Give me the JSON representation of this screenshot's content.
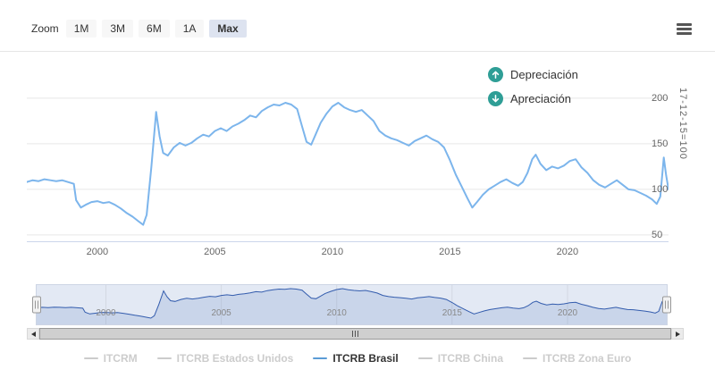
{
  "toolbar": {
    "zoom_label": "Zoom",
    "buttons": [
      "1M",
      "3M",
      "6M",
      "1A",
      "Max"
    ],
    "active_button": "Max"
  },
  "annotations": [
    {
      "id": "depreciation",
      "label": "Depreciación",
      "icon": "arrow-up-circle-icon",
      "color": "#2f9e96"
    },
    {
      "id": "appreciation",
      "label": "Apreciación",
      "icon": "arrow-down-circle-icon",
      "color": "#2f9e96"
    }
  ],
  "chart_data": {
    "type": "line",
    "title": "",
    "xlabel": "",
    "ylabel": "17-12-15=100",
    "grid": true,
    "legend_position": "bottom",
    "x_ticks": [
      2000,
      2005,
      2010,
      2015,
      2020
    ],
    "y_ticks": [
      50,
      100,
      150,
      200
    ],
    "xlim": [
      1997.0,
      2024.3
    ],
    "ylim": [
      43,
      244
    ],
    "series": [
      {
        "name": "ITCRB Brasil",
        "color": "#7cb5ec",
        "x": [
          1997.0,
          1997.25,
          1997.5,
          1997.75,
          1998.0,
          1998.25,
          1998.5,
          1998.75,
          1999.0,
          1999.1,
          1999.3,
          1999.5,
          1999.75,
          2000.0,
          2000.25,
          2000.5,
          2000.75,
          2001.0,
          2001.25,
          2001.5,
          2001.75,
          2001.95,
          2002.1,
          2002.3,
          2002.5,
          2002.65,
          2002.8,
          2003.0,
          2003.25,
          2003.5,
          2003.75,
          2004.0,
          2004.25,
          2004.5,
          2004.75,
          2005.0,
          2005.25,
          2005.5,
          2005.75,
          2006.0,
          2006.25,
          2006.5,
          2006.75,
          2007.0,
          2007.25,
          2007.5,
          2007.75,
          2008.0,
          2008.25,
          2008.5,
          2008.7,
          2008.9,
          2009.1,
          2009.3,
          2009.5,
          2009.75,
          2010.0,
          2010.25,
          2010.5,
          2010.75,
          2011.0,
          2011.25,
          2011.5,
          2011.75,
          2012.0,
          2012.25,
          2012.5,
          2012.75,
          2013.0,
          2013.25,
          2013.5,
          2013.75,
          2014.0,
          2014.25,
          2014.5,
          2014.75,
          2015.0,
          2015.25,
          2015.5,
          2015.75,
          2015.95,
          2016.15,
          2016.4,
          2016.65,
          2016.9,
          2017.15,
          2017.4,
          2017.65,
          2017.9,
          2018.1,
          2018.3,
          2018.5,
          2018.65,
          2018.85,
          2019.1,
          2019.35,
          2019.6,
          2019.85,
          2020.1,
          2020.35,
          2020.6,
          2020.85,
          2021.1,
          2021.35,
          2021.6,
          2021.85,
          2022.1,
          2022.35,
          2022.6,
          2022.85,
          2023.1,
          2023.35,
          2023.6,
          2023.8,
          2023.95,
          2024.1,
          2024.2,
          2024.3
        ],
        "y": [
          108,
          110,
          109,
          111,
          110,
          109,
          110,
          108,
          106,
          88,
          80,
          83,
          86,
          87,
          85,
          86,
          83,
          79,
          74,
          70,
          65,
          61,
          72,
          125,
          185,
          158,
          140,
          137,
          146,
          151,
          148,
          151,
          156,
          160,
          158,
          164,
          167,
          164,
          169,
          172,
          176,
          181,
          179,
          186,
          190,
          193,
          192,
          195,
          193,
          188,
          170,
          152,
          149,
          161,
          173,
          183,
          191,
          195,
          190,
          187,
          185,
          187,
          181,
          175,
          164,
          159,
          156,
          154,
          151,
          148,
          153,
          156,
          159,
          155,
          152,
          146,
          132,
          116,
          103,
          90,
          80,
          86,
          94,
          100,
          104,
          108,
          111,
          107,
          104,
          108,
          118,
          133,
          138,
          128,
          121,
          125,
          123,
          126,
          131,
          133,
          124,
          118,
          110,
          105,
          102,
          106,
          110,
          105,
          100,
          99,
          96,
          93,
          89,
          84,
          92,
          135,
          115,
          100
        ]
      }
    ]
  },
  "navigator": {
    "x_ticks": [
      2000,
      2005,
      2010,
      2015,
      2020
    ],
    "line_color": "#335cad",
    "mask_color": "rgba(102,133,194,0.18)",
    "area_color": "rgba(102,133,194,0.2)"
  },
  "legend": {
    "inactive_color": "#cccccc",
    "active_text_color": "#333333",
    "items": [
      {
        "label": "ITCRM",
        "active": false
      },
      {
        "label": "ITCRB Estados Unidos",
        "active": false
      },
      {
        "label": "ITCRB Brasil",
        "active": true,
        "color": "#5b9cd6"
      },
      {
        "label": "ITCRB China",
        "active": false
      },
      {
        "label": "ITCRB Zona Euro",
        "active": false
      }
    ]
  }
}
